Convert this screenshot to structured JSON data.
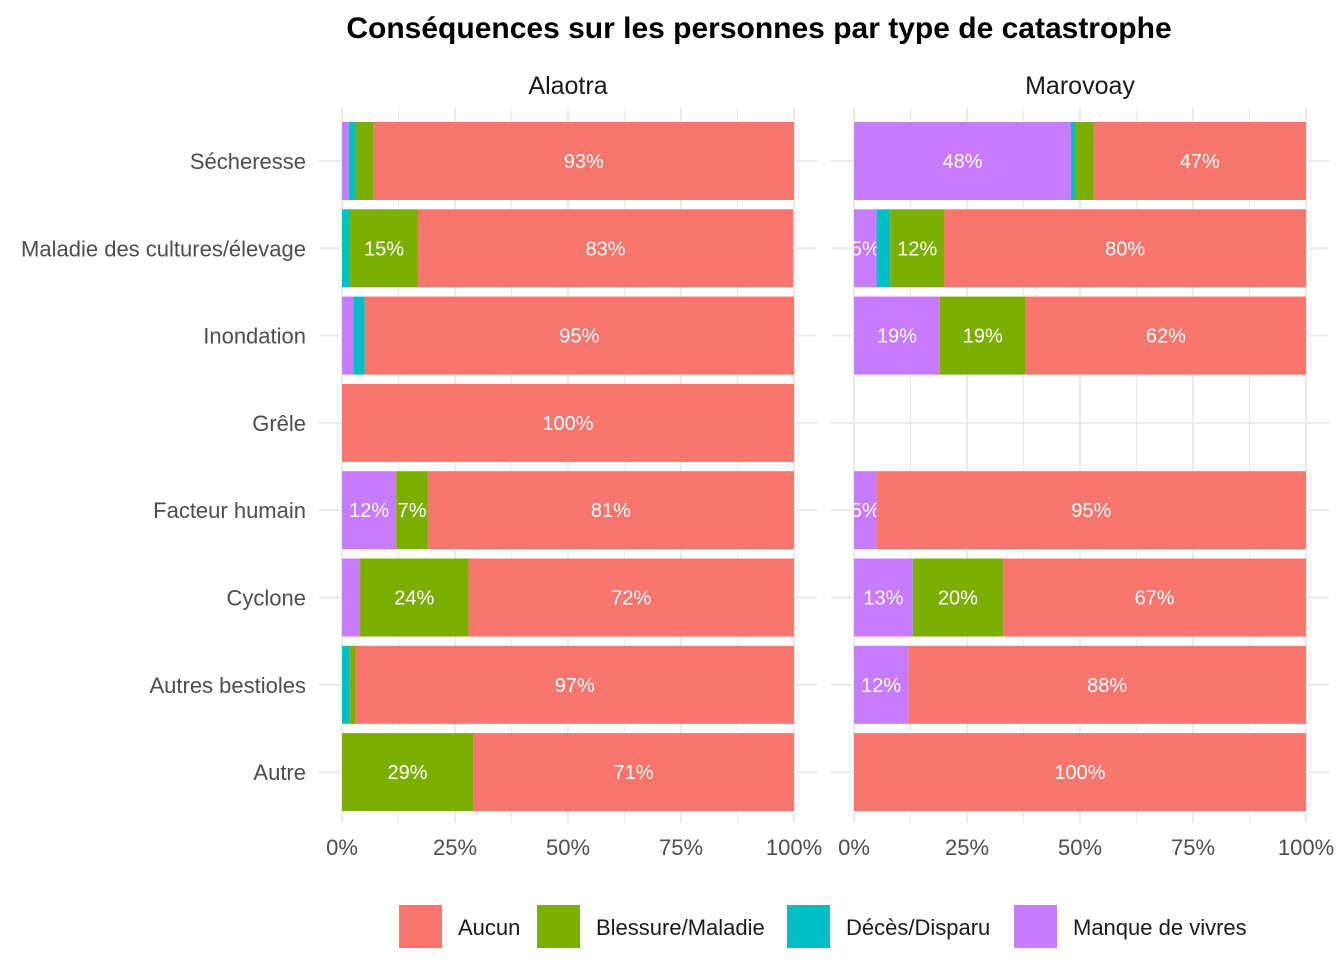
{
  "chart_data": {
    "type": "bar",
    "orientation": "horizontal-stacked-percent",
    "title": "Conséquences sur les personnes par type de catastrophe",
    "xlabel": "",
    "ylabel": "",
    "xlim": [
      0,
      100
    ],
    "x_ticks": [
      "0%",
      "25%",
      "50%",
      "75%",
      "100%"
    ],
    "grid": true,
    "legend_position": "bottom",
    "categories": [
      "Sécheresse",
      "Maladie des cultures/élevage",
      "Inondation",
      "Grêle",
      "Facteur humain",
      "Cyclone",
      "Autres bestioles",
      "Autre"
    ],
    "series_order": [
      "Manque de vivres",
      "Décès/Disparu",
      "Blessure/Maladie",
      "Aucun"
    ],
    "legend": [
      "Aucun",
      "Blessure/Maladie",
      "Décès/Disparu",
      "Manque de vivres"
    ],
    "colors": {
      "Aucun": "#F8766D",
      "Blessure/Maladie": "#7CAE00",
      "Décès/Disparu": "#00BFC4",
      "Manque de vivres": "#C77CFF"
    },
    "label_min": 5,
    "panels": [
      {
        "name": "Alaotra",
        "series": [
          {
            "name": "Manque de vivres",
            "values": [
              1.5,
              0,
              2.5,
              0,
              12,
              4,
              0,
              0
            ]
          },
          {
            "name": "Décès/Disparu",
            "values": [
              1.5,
              1.8,
              2.5,
              0,
              0,
              0,
              1.6,
              0
            ]
          },
          {
            "name": "Blessure/Maladie",
            "values": [
              4,
              15,
              0,
              0,
              7,
              24,
              1.4,
              29
            ]
          },
          {
            "name": "Aucun",
            "values": [
              93,
              83,
              95,
              100,
              81,
              72,
              97,
              71
            ]
          }
        ]
      },
      {
        "name": "Marovoay",
        "series": [
          {
            "name": "Manque de vivres",
            "values": [
              48,
              5,
              19,
              0,
              5,
              13,
              12,
              0
            ]
          },
          {
            "name": "Décès/Disparu",
            "values": [
              1,
              3,
              0,
              0,
              0,
              0,
              0,
              0
            ]
          },
          {
            "name": "Blessure/Maladie",
            "values": [
              4,
              12,
              19,
              0,
              0,
              20,
              0,
              0
            ]
          },
          {
            "name": "Aucun",
            "values": [
              47,
              80,
              62,
              0,
              95,
              67,
              88,
              100
            ]
          }
        ]
      }
    ]
  }
}
